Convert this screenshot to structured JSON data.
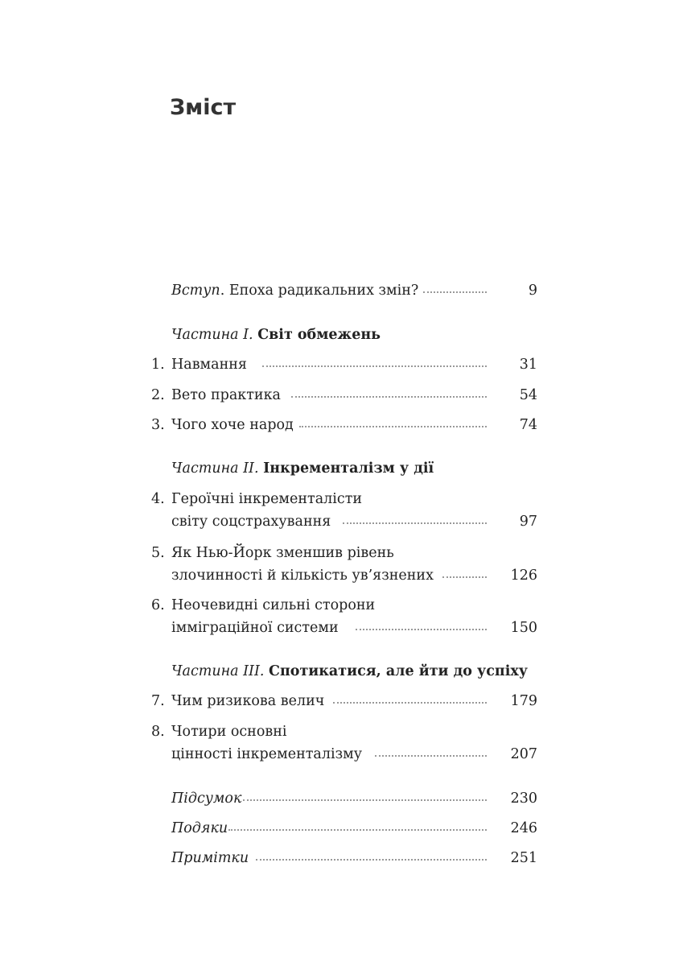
{
  "title": "Зміст",
  "intro": {
    "label_italic": "Вступ",
    "label": ". Епоха радикальних змін?",
    "page": "9"
  },
  "parts": [
    {
      "prefix": "Частина I.",
      "title": "Світ обмежень"
    },
    {
      "prefix": "Частина II.",
      "title": "Інкременталізм у дії"
    },
    {
      "prefix": "Частина III.",
      "title": "Спотикатися, але йти до успіху"
    }
  ],
  "chapters": [
    {
      "num": "1.",
      "lines": [
        "Навмання"
      ],
      "page": "31"
    },
    {
      "num": "2.",
      "lines": [
        "Вето практика"
      ],
      "page": "54"
    },
    {
      "num": "3.",
      "lines": [
        "Чого хоче народ"
      ],
      "page": "74"
    },
    {
      "num": "4.",
      "lines": [
        "Героїчні інкременталісти",
        "світу соцстрахування"
      ],
      "page": "97"
    },
    {
      "num": "5.",
      "lines": [
        "Як Нью-Йорк зменшив рівень",
        "злочинності й кількість ув’язнених"
      ],
      "page": "126"
    },
    {
      "num": "6.",
      "lines": [
        "Неочевидні сильні сторони",
        "імміграційної системи"
      ],
      "page": "150"
    },
    {
      "num": "7.",
      "lines": [
        "Чим ризикова велич"
      ],
      "page": "179"
    },
    {
      "num": "8.",
      "lines": [
        "Чотири основні",
        "цінності інкременталізму"
      ],
      "page": "207"
    }
  ],
  "backmatter": [
    {
      "label": "Підсумок",
      "page": "230"
    },
    {
      "label": "Подяки",
      "page": "246"
    },
    {
      "label": "Примітки",
      "page": "251"
    }
  ]
}
